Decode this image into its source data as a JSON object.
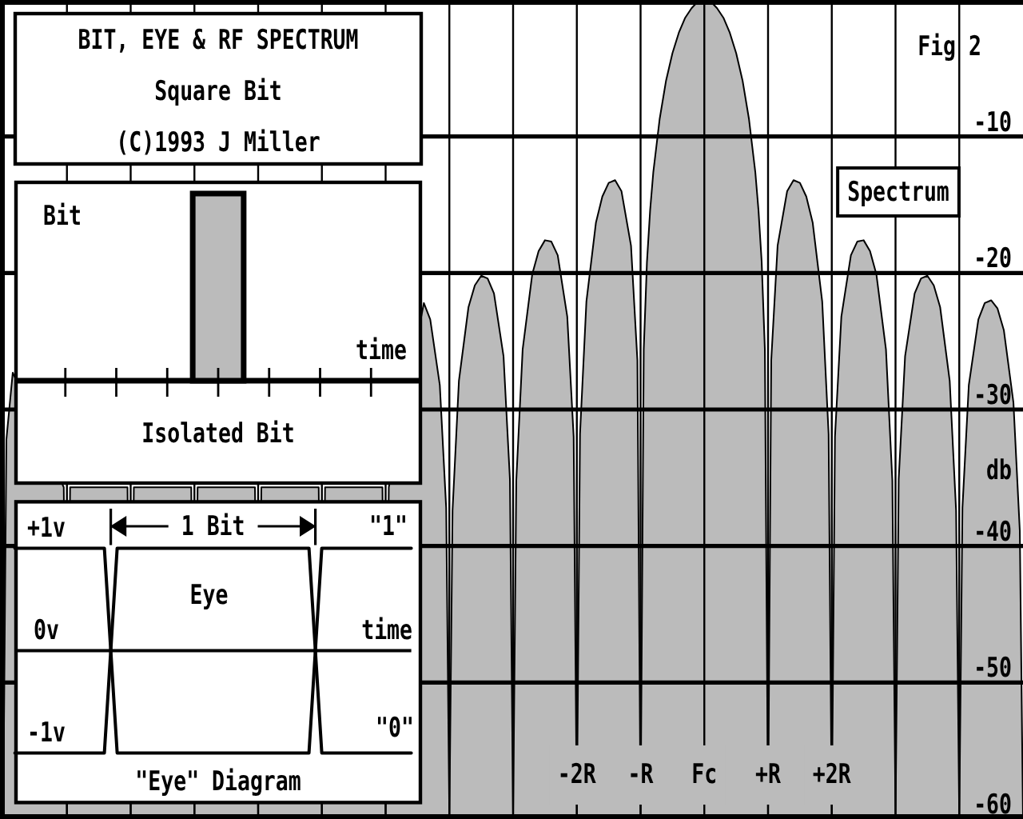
{
  "chart_data": [
    {
      "type": "area",
      "title": "BIT, EYE & RF SPECTRUM",
      "subtitle": "Square Bit",
      "ylabel": "db",
      "annotations": [
        "(C)1993 J Miller",
        "Fig 2",
        "Spectrum"
      ],
      "x": [
        -11,
        -10.95,
        -10.85,
        -10.05,
        -10,
        -9.95,
        -9.05,
        -9,
        -8.95,
        -8.05,
        -8,
        -7.95,
        -7.05,
        -7,
        -6.95,
        -6.05,
        -6,
        -5.95,
        -5.05,
        -5,
        -4.95,
        -4.4,
        -4.3,
        -4.15,
        -4.05,
        -4,
        -3.95,
        -3.85,
        -3.7,
        -3.6,
        -3.5,
        -3.4,
        -3.3,
        -3.15,
        -3.05,
        -3,
        -2.95,
        -2.85,
        -2.7,
        -2.6,
        -2.5,
        -2.4,
        -2.3,
        -2.15,
        -2.05,
        -2,
        -1.95,
        -1.85,
        -1.7,
        -1.6,
        -1.5,
        -1.4,
        -1.3,
        -1.15,
        -1.05,
        -1,
        -0.95,
        -0.9,
        -0.85,
        -0.8,
        -0.7,
        -0.6,
        -0.5,
        -0.4,
        -0.3,
        -0.2,
        -0.1,
        0,
        0.1,
        0.2,
        0.3,
        0.4,
        0.5,
        0.6,
        0.7,
        0.8,
        0.85,
        0.9,
        0.95,
        1,
        1.05,
        1.15,
        1.3,
        1.4,
        1.5,
        1.6,
        1.7,
        1.85,
        1.95,
        2,
        2.05,
        2.15,
        2.3,
        2.4,
        2.5,
        2.6,
        2.7,
        2.85,
        2.95,
        3,
        3.05,
        3.15,
        3.3,
        3.4,
        3.5,
        3.6,
        3.7,
        3.85,
        3.95,
        4,
        4.05,
        4.15,
        4.3,
        4.4,
        4.5,
        4.6,
        4.7,
        4.85,
        4.95,
        5
      ],
      "values": [
        -60,
        -32.2,
        -27.3,
        -35.7,
        -60,
        -35.7,
        -35.7,
        -60,
        -35.7,
        -35.7,
        -60,
        -35.7,
        -35.7,
        -60,
        -35.7,
        -35.7,
        -60,
        -35.7,
        -35.7,
        -60,
        -35.7,
        -22.2,
        -23.4,
        -28.2,
        -37.2,
        -60,
        -37.4,
        -27.9,
        -22.5,
        -20.9,
        -20.2,
        -20.4,
        -21.5,
        -26.1,
        -35.1,
        -60,
        -35.2,
        -25.6,
        -20.1,
        -18.4,
        -17.6,
        -17.7,
        -18.7,
        -23.2,
        -32.0,
        -60,
        -31.8,
        -22.1,
        -16.3,
        -14.4,
        -13.4,
        -13.2,
        -14.0,
        -18.0,
        -26.4,
        -60,
        -25.6,
        -19.2,
        -15.4,
        -12.6,
        -8.7,
        -5.9,
        -3.9,
        -2.4,
        -1.3,
        -0.6,
        -0.1,
        0,
        -0.1,
        -0.6,
        -1.3,
        -2.4,
        -3.9,
        -5.9,
        -8.7,
        -12.6,
        -15.4,
        -19.2,
        -25.6,
        -60,
        -26.4,
        -18.0,
        -14.0,
        -13.2,
        -13.4,
        -14.4,
        -16.3,
        -22.1,
        -31.8,
        -60,
        -32.0,
        -23.2,
        -18.7,
        -17.7,
        -17.6,
        -18.4,
        -20.1,
        -25.6,
        -35.2,
        -60,
        -35.1,
        -26.1,
        -21.5,
        -20.4,
        -20.2,
        -20.9,
        -22.5,
        -27.9,
        -37.4,
        -60,
        -37.2,
        -28.2,
        -23.4,
        -22.2,
        -22.0,
        -22.6,
        -24.2,
        -29.5,
        -38.9,
        -60
      ],
      "color": "#bbbbbb",
      "xlim": [
        -11,
        5
      ],
      "xticks": [
        {
          "value": -10,
          "label": null
        },
        {
          "value": -9,
          "label": null
        },
        {
          "value": -8,
          "label": null
        },
        {
          "value": -7,
          "label": null
        },
        {
          "value": -6,
          "label": null
        },
        {
          "value": -5,
          "label": null
        },
        {
          "value": -4,
          "label": null
        },
        {
          "value": -3,
          "label": null
        },
        {
          "value": -2,
          "label": "-2R"
        },
        {
          "value": -1,
          "label": "-R"
        },
        {
          "value": 0,
          "label": "Fc"
        },
        {
          "value": 1,
          "label": "+R"
        },
        {
          "value": 2,
          "label": "+2R"
        },
        {
          "value": 3,
          "label": null
        },
        {
          "value": 4,
          "label": null
        }
      ],
      "ylim": [
        -60,
        0
      ],
      "yticks": [
        -60,
        -50,
        -40,
        -30,
        -20,
        -10
      ],
      "grid": true
    },
    {
      "type": "other",
      "title": "Isolated Bit",
      "xlabel": "time",
      "ylabel": "Bit"
    },
    {
      "type": "line",
      "title": "\"Eye\" Diagram",
      "xlabel": "time",
      "annotations": [
        "Eye",
        "1 Bit",
        "\"1\"",
        "\"0\""
      ],
      "categories": [
        null,
        null,
        null,
        null,
        null,
        null,
        null,
        null,
        null,
        null,
        null,
        null,
        null,
        null,
        null,
        null,
        null,
        null,
        null,
        null,
        null,
        null,
        null,
        null,
        null,
        null,
        null,
        null,
        null,
        null,
        null,
        null
      ],
      "series": [
        {
          "color": "#000000",
          "values": [
            1,
            1,
            1,
            1,
            1,
            1,
            1,
            1,
            -1,
            -1,
            -1,
            -1,
            -1,
            -1,
            -1,
            -1,
            -1,
            -1,
            -1,
            -1,
            -1,
            -1,
            -1,
            -1,
            1,
            1,
            1,
            1,
            1,
            1,
            1,
            1
          ]
        },
        {
          "color": "#000000",
          "values": [
            -1,
            -1,
            -1,
            -1,
            -1,
            -1,
            -1,
            -1,
            1,
            1,
            1,
            1,
            1,
            1,
            1,
            1,
            1,
            1,
            1,
            1,
            1,
            1,
            1,
            1,
            -1,
            -1,
            -1,
            -1,
            -1,
            -1,
            -1,
            -1
          ]
        }
      ],
      "ylim": [
        -1,
        1
      ],
      "yticks": [
        {
          "value": 1,
          "label": "+1v"
        },
        {
          "value": 0,
          "label": "0v"
        },
        {
          "value": -1,
          "label": "-1v"
        }
      ],
      "tick_labels": "y"
    }
  ]
}
